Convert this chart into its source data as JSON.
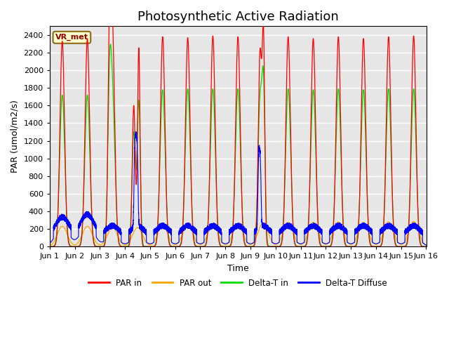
{
  "title": "Photosynthetic Active Radiation",
  "ylabel": "PAR (umol/m2/s)",
  "xlabel": "Time",
  "annotation_label": "VR_met",
  "ylim": [
    0,
    2500
  ],
  "xlim_days": 15,
  "background_color": "#e6e6e6",
  "grid_color": "white",
  "series": {
    "par_in": {
      "color": "#ff0000",
      "label": "PAR in"
    },
    "par_out": {
      "color": "#ffa500",
      "label": "PAR out"
    },
    "delta_t_in": {
      "color": "#00dd00",
      "label": "Delta-T in"
    },
    "delta_t_diffuse": {
      "color": "#0000ff",
      "label": "Delta-T Diffuse"
    }
  },
  "xtick_labels": [
    "Jun 1",
    "Jun 2",
    "Jun 3",
    "Jun 4",
    "Jun 5",
    "Jun 6",
    "Jun 7",
    "Jun 8",
    "Jun 9",
    "Jun 10",
    "Jun 11",
    "Jun 12",
    "Jun 13",
    "Jun 14",
    "Jun 15",
    "Jun 16"
  ],
  "xtick_positions": [
    0,
    1,
    2,
    3,
    4,
    5,
    6,
    7,
    8,
    9,
    10,
    11,
    12,
    13,
    14,
    15
  ],
  "title_fontsize": 13,
  "label_fontsize": 9,
  "tick_fontsize": 8
}
